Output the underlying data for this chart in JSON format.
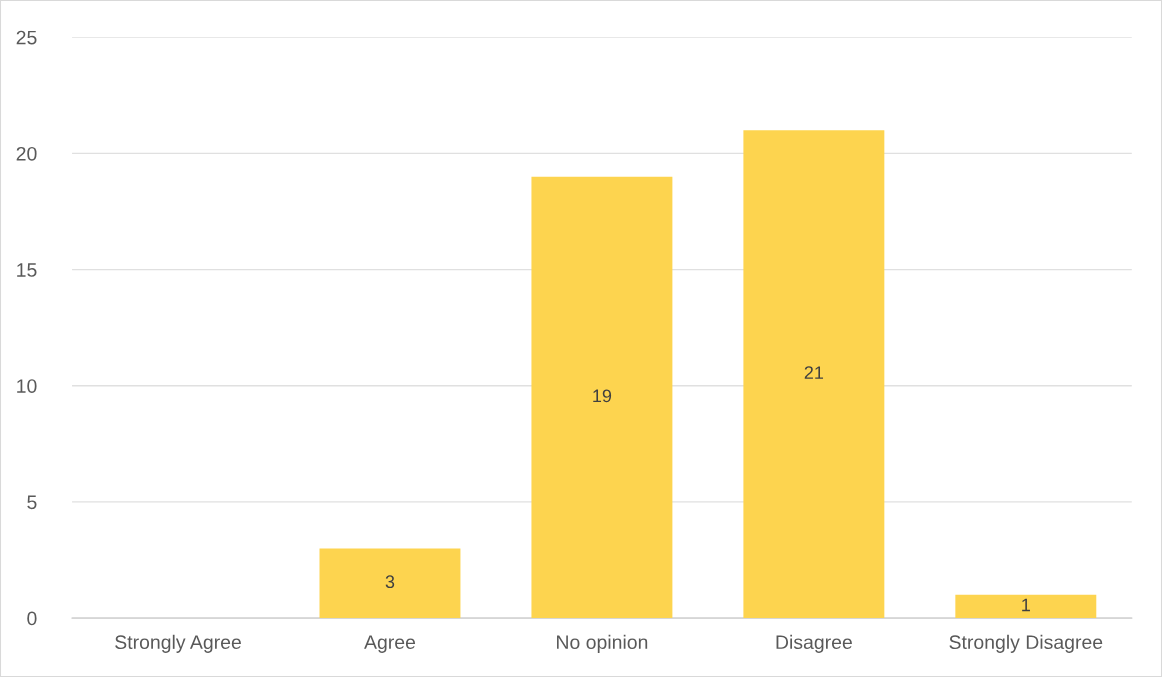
{
  "chart_data": {
    "type": "bar",
    "categories": [
      "Strongly Agree",
      "Agree",
      "No opinion",
      "Disagree",
      "Strongly Disagree"
    ],
    "values": [
      0,
      3,
      19,
      21,
      1
    ],
    "value_labels": [
      null,
      "3",
      "19",
      "21",
      "1"
    ],
    "color": "#fdd44f",
    "ylim": [
      0,
      25
    ],
    "yticks": [
      0,
      5,
      10,
      15,
      20,
      25
    ],
    "grid": "y"
  }
}
